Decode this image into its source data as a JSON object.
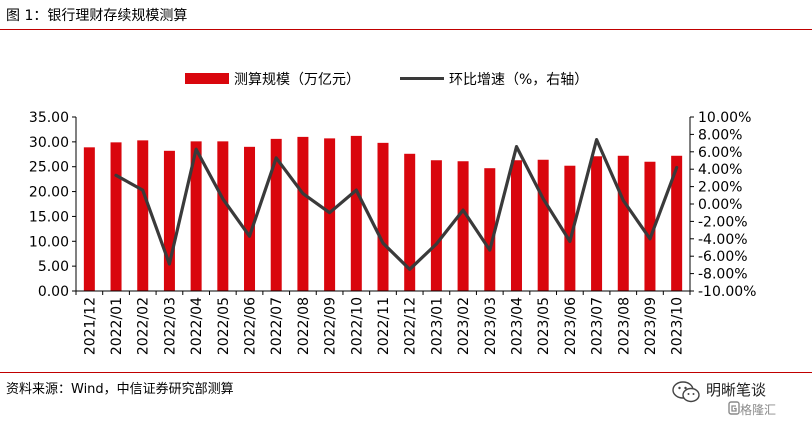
{
  "figure": {
    "title": "图 1：银行理财存续规模测算",
    "source": "资料来源：Wind，中信证券研究部测算",
    "brand_name": "明晰笔谈",
    "brand_sub": "格隆汇"
  },
  "colors": {
    "bar": "#d9060d",
    "line": "#3a3a3a",
    "rule": "#c00000"
  },
  "chart_data": {
    "type": "bar",
    "categories": [
      "2021/12",
      "2022/01",
      "2022/02",
      "2022/03",
      "2022/04",
      "2022/05",
      "2022/06",
      "2022/07",
      "2022/08",
      "2022/09",
      "2022/10",
      "2022/11",
      "2022/12",
      "2023/01",
      "2023/02",
      "2023/03",
      "2023/04",
      "2023/05",
      "2023/06",
      "2023/07",
      "2023/08",
      "2023/09",
      "2023/10"
    ],
    "series": [
      {
        "name": "测算规模（万亿元）",
        "type": "bar",
        "axis": "left",
        "values": [
          28.9,
          29.9,
          30.3,
          28.2,
          30.1,
          30.1,
          29.0,
          30.6,
          31.0,
          30.7,
          31.2,
          29.8,
          27.6,
          26.3,
          26.1,
          24.7,
          26.3,
          26.4,
          25.2,
          27.1,
          27.2,
          26.0,
          27.2
        ]
      },
      {
        "name": "环比增速（%，右轴）",
        "type": "line",
        "axis": "right",
        "values": [
          null,
          3.3,
          1.6,
          -6.9,
          6.3,
          0.6,
          -3.7,
          5.3,
          1.2,
          -1.0,
          1.6,
          -4.5,
          -7.5,
          -4.6,
          -0.7,
          -5.3,
          6.6,
          0.6,
          -4.3,
          7.4,
          0.4,
          -4.0,
          4.2
        ]
      }
    ],
    "y_left": {
      "ylim": [
        0,
        35
      ],
      "ticks": [
        "0.00",
        "5.00",
        "10.00",
        "15.00",
        "20.00",
        "25.00",
        "30.00",
        "35.00"
      ]
    },
    "y_right": {
      "ylim": [
        -10,
        10
      ],
      "ticks": [
        "-10.00%",
        "-8.00%",
        "-6.00%",
        "-4.00%",
        "-2.00%",
        "0.00%",
        "2.00%",
        "4.00%",
        "6.00%",
        "8.00%",
        "10.00%"
      ]
    },
    "legend_position": "top-center",
    "grid": false
  }
}
